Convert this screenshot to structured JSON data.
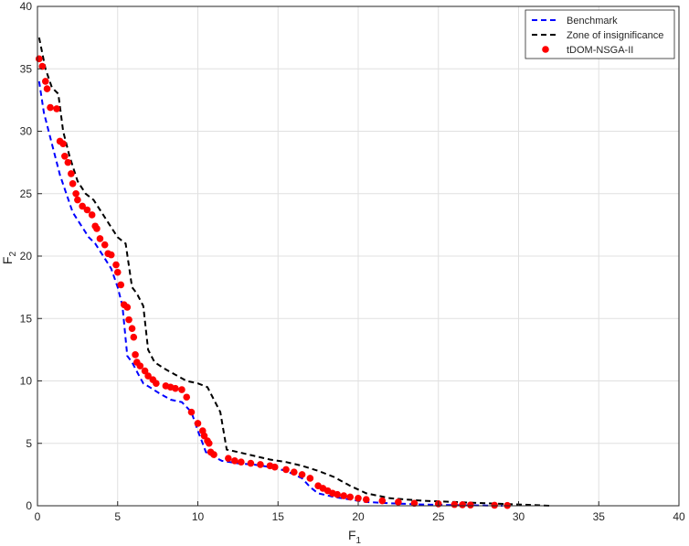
{
  "chart_data": {
    "type": "line",
    "xlabel": "F",
    "xlabel_sub": "1",
    "ylabel": "F",
    "ylabel_sub": "2",
    "xlim": [
      0,
      40
    ],
    "ylim": [
      0,
      40
    ],
    "xticks": [
      0,
      5,
      10,
      15,
      20,
      25,
      30,
      35,
      40
    ],
    "yticks": [
      0,
      5,
      10,
      15,
      20,
      25,
      30,
      35,
      40
    ],
    "grid": true,
    "legend_position": "top-right",
    "series": [
      {
        "name": "Benchmark",
        "style": "dashed-line",
        "color": "#0000ff",
        "x": [
          0.1,
          0.4,
          0.8,
          1.1,
          1.4,
          1.8,
          2.2,
          2.7,
          3.2,
          3.6,
          4.1,
          4.6,
          5.0,
          5.3,
          5.6,
          5.9,
          6.3,
          6.6,
          7.0,
          7.6,
          8.3,
          9.0,
          9.6,
          10.0,
          10.3,
          10.5,
          10.9,
          11.5,
          12.5,
          13.5,
          14.5,
          15.5,
          16.5,
          17.0,
          17.5,
          18.5,
          19.5,
          20.5,
          22,
          24,
          26,
          28,
          29
        ],
        "y": [
          34,
          31.5,
          29.5,
          28,
          26.5,
          25,
          23.5,
          22.5,
          21.5,
          21,
          20,
          19,
          17.5,
          16,
          12,
          11.5,
          10.5,
          9.8,
          9.5,
          9.0,
          8.5,
          8.3,
          7.5,
          6.0,
          5.0,
          4.3,
          4.0,
          3.6,
          3.4,
          3.3,
          3.1,
          2.8,
          2.2,
          1.5,
          1.0,
          0.7,
          0.5,
          0.3,
          0.2,
          0.1,
          0.05,
          0.02,
          0.0
        ]
      },
      {
        "name": "Zone of insignificance",
        "style": "dashed-line",
        "color": "#000000",
        "x": [
          0.1,
          0.5,
          0.9,
          1.3,
          1.6,
          2.0,
          2.5,
          3.0,
          3.5,
          4.0,
          4.5,
          5.0,
          5.5,
          5.9,
          6.2,
          6.6,
          6.9,
          7.3,
          7.9,
          8.6,
          9.3,
          10.0,
          10.6,
          11.0,
          11.4,
          11.8,
          12.5,
          13.5,
          14.5,
          15.5,
          16.5,
          17.5,
          18.5,
          19.5,
          20.5,
          22,
          24,
          26,
          28,
          30,
          32
        ],
        "y": [
          37.5,
          35,
          33.5,
          33,
          30,
          28,
          26,
          25,
          24.5,
          23.5,
          22.5,
          21.5,
          21,
          17.5,
          17,
          16,
          12.5,
          11.5,
          11,
          10.5,
          10,
          9.8,
          9.5,
          8.5,
          7.5,
          4.5,
          4.3,
          4.0,
          3.7,
          3.5,
          3.2,
          2.8,
          2.3,
          1.6,
          1.0,
          0.6,
          0.4,
          0.3,
          0.2,
          0.1,
          0.0
        ]
      },
      {
        "name": "tDOM-NSGA-II",
        "style": "markers",
        "color": "#ff0000",
        "x": [
          0.1,
          0.3,
          0.5,
          0.6,
          0.8,
          1.2,
          1.4,
          1.6,
          1.7,
          1.9,
          2.1,
          2.2,
          2.4,
          2.5,
          2.8,
          3.1,
          3.4,
          3.6,
          3.7,
          3.9,
          4.2,
          4.4,
          4.6,
          4.9,
          5.0,
          5.2,
          5.4,
          5.6,
          5.7,
          5.9,
          6.0,
          6.1,
          6.2,
          6.4,
          6.7,
          6.9,
          7.2,
          7.4,
          8.0,
          8.3,
          8.6,
          9.0,
          9.3,
          9.6,
          10.0,
          10.3,
          10.4,
          10.6,
          10.7,
          10.8,
          11.0,
          11.9,
          12.3,
          12.7,
          13.3,
          13.9,
          14.5,
          14.8,
          15.5,
          16.0,
          16.5,
          17.0,
          17.5,
          17.8,
          18.1,
          18.4,
          18.7,
          19.1,
          19.5,
          20.0,
          20.5,
          21.5,
          22.5,
          23.5,
          25.0,
          26.0,
          26.5,
          27.0,
          28.5,
          29.3
        ],
        "y": [
          35.8,
          35.2,
          34.0,
          33.4,
          31.9,
          31.8,
          29.2,
          29.0,
          28.0,
          27.5,
          26.6,
          25.8,
          25.0,
          24.5,
          24.0,
          23.7,
          23.3,
          22.4,
          22.2,
          21.4,
          20.9,
          20.2,
          20.1,
          19.3,
          18.7,
          17.7,
          16.1,
          15.9,
          14.9,
          14.2,
          13.5,
          12.1,
          11.5,
          11.2,
          10.8,
          10.4,
          10.1,
          9.8,
          9.6,
          9.5,
          9.4,
          9.3,
          8.7,
          7.5,
          6.6,
          6.0,
          5.6,
          5.2,
          5.0,
          4.3,
          4.1,
          3.8,
          3.6,
          3.5,
          3.4,
          3.3,
          3.2,
          3.1,
          2.9,
          2.7,
          2.5,
          2.2,
          1.6,
          1.4,
          1.2,
          1.0,
          0.9,
          0.8,
          0.7,
          0.6,
          0.5,
          0.4,
          0.3,
          0.2,
          0.15,
          0.1,
          0.08,
          0.06,
          0.04,
          0.02
        ]
      }
    ]
  }
}
